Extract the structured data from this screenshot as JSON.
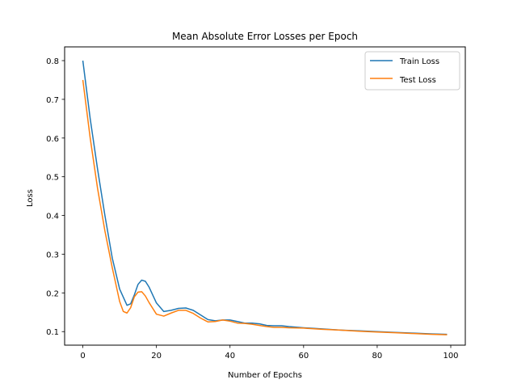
{
  "chart_data": {
    "type": "line",
    "title": "Mean Absolute Error Losses per Epoch",
    "xlabel": "Number of Epochs",
    "ylabel": "Loss",
    "xlim": [
      -4.95,
      103.95
    ],
    "ylim": [
      0.065,
      0.8355
    ],
    "xticks": [
      0,
      20,
      40,
      60,
      80,
      100
    ],
    "yticks": [
      0.1,
      0.2,
      0.3,
      0.4,
      0.5,
      0.6,
      0.7,
      0.8
    ],
    "grid": false,
    "legend_position": "top-right",
    "series": [
      {
        "name": "Train Loss",
        "color": "#1f77b4",
        "x": [
          0,
          2,
          4,
          6,
          8,
          10,
          12,
          13,
          14,
          15,
          16,
          17,
          18,
          20,
          22,
          24,
          26,
          28,
          30,
          32,
          34,
          36,
          38,
          40,
          42,
          44,
          46,
          48,
          50,
          52,
          54,
          56,
          60,
          65,
          70,
          75,
          80,
          85,
          90,
          95,
          99
        ],
        "values": [
          0.8,
          0.65,
          0.52,
          0.4,
          0.29,
          0.21,
          0.168,
          0.172,
          0.195,
          0.222,
          0.233,
          0.23,
          0.215,
          0.174,
          0.152,
          0.155,
          0.16,
          0.161,
          0.155,
          0.143,
          0.131,
          0.128,
          0.13,
          0.13,
          0.126,
          0.122,
          0.122,
          0.12,
          0.116,
          0.115,
          0.115,
          0.113,
          0.11,
          0.107,
          0.104,
          0.102,
          0.1,
          0.098,
          0.096,
          0.094,
          0.093
        ]
      },
      {
        "name": "Test Loss",
        "color": "#ff7f0e",
        "x": [
          0,
          2,
          4,
          6,
          8,
          10,
          11,
          12,
          13,
          14,
          15,
          16,
          17,
          18,
          20,
          22,
          24,
          26,
          28,
          30,
          32,
          34,
          36,
          38,
          40,
          42,
          44,
          46,
          48,
          50,
          52,
          54,
          56,
          60,
          65,
          70,
          75,
          80,
          85,
          90,
          95,
          99
        ],
        "values": [
          0.75,
          0.6,
          0.47,
          0.36,
          0.265,
          0.178,
          0.152,
          0.148,
          0.162,
          0.19,
          0.202,
          0.203,
          0.192,
          0.175,
          0.145,
          0.14,
          0.148,
          0.155,
          0.155,
          0.147,
          0.135,
          0.125,
          0.126,
          0.13,
          0.127,
          0.122,
          0.121,
          0.119,
          0.116,
          0.113,
          0.111,
          0.111,
          0.11,
          0.109,
          0.106,
          0.104,
          0.101,
          0.099,
          0.097,
          0.095,
          0.093,
          0.092
        ]
      }
    ]
  }
}
